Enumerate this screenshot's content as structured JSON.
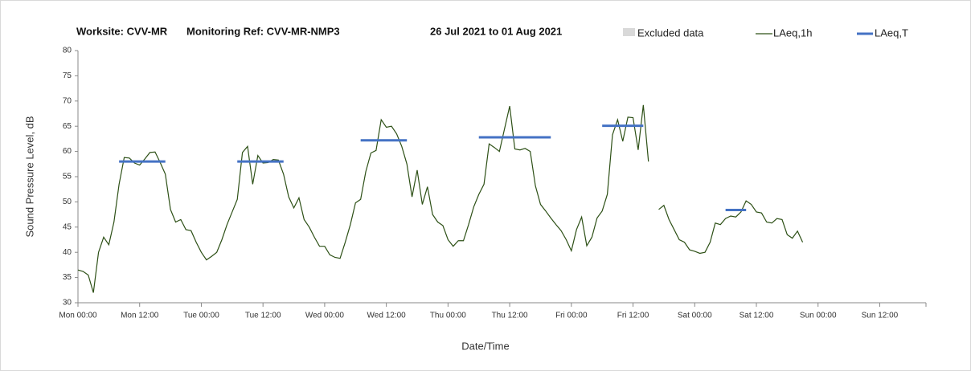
{
  "chart_data": {
    "type": "line",
    "title": [
      "Worksite: CVV-MR",
      "Monitoring Ref: CVV-MR-NMP3",
      "26 Jul 2021 to 01 Aug 2021"
    ],
    "x_label": "Date/Time",
    "y_label": "Sound Pressure Level, dB",
    "xlim": [
      0,
      165
    ],
    "xticks": [
      {
        "value": 0,
        "label": "Mon 00:00"
      },
      {
        "value": 12,
        "label": "Mon 12:00"
      },
      {
        "value": 24,
        "label": "Tue 00:00"
      },
      {
        "value": 36,
        "label": "Tue 12:00"
      },
      {
        "value": 48,
        "label": "Wed 00:00"
      },
      {
        "value": 60,
        "label": "Wed 12:00"
      },
      {
        "value": 72,
        "label": "Thu 00:00"
      },
      {
        "value": 84,
        "label": "Thu 12:00"
      },
      {
        "value": 96,
        "label": "Fri 00:00"
      },
      {
        "value": 108,
        "label": "Fri 12:00"
      },
      {
        "value": 120,
        "label": "Sat 00:00"
      },
      {
        "value": 132,
        "label": "Sat 12:00"
      },
      {
        "value": 144,
        "label": "Sun 00:00"
      },
      {
        "value": 156,
        "label": "Sun 12:00"
      }
    ],
    "ylim": [
      30,
      80
    ],
    "yticks": [
      30,
      35,
      40,
      45,
      50,
      55,
      60,
      65,
      70,
      75,
      80
    ],
    "x": [
      0,
      1,
      2,
      3,
      4,
      5,
      6,
      7,
      8,
      9,
      10,
      11,
      12,
      13,
      14,
      15,
      16,
      17,
      18,
      19,
      20,
      21,
      22,
      23,
      24,
      25,
      26,
      27,
      28,
      29,
      30,
      31,
      32,
      33,
      34,
      35,
      36,
      37,
      38,
      39,
      40,
      41,
      42,
      43,
      44,
      45,
      46,
      47,
      48,
      49,
      50,
      51,
      52,
      53,
      54,
      55,
      56,
      57,
      58,
      59,
      60,
      61,
      62,
      63,
      64,
      65,
      66,
      67,
      68,
      69,
      70,
      71,
      72,
      73,
      74,
      75,
      76,
      77,
      78,
      79,
      80,
      81,
      82,
      83,
      84,
      85,
      86,
      87,
      88,
      89,
      90,
      91,
      92,
      93,
      94,
      95,
      96,
      97,
      98,
      99,
      100,
      101,
      102,
      103,
      104,
      105,
      106,
      107,
      108,
      109,
      110,
      111,
      112,
      113,
      114,
      115,
      116,
      117,
      118,
      119,
      120,
      121,
      122,
      123,
      124,
      125,
      126,
      127,
      128,
      129,
      130,
      131,
      132,
      133,
      134,
      135,
      136,
      137,
      138,
      139,
      140,
      141
    ],
    "series": [
      {
        "name": "Excluded data",
        "color": "#d9d9d9",
        "kind": "band",
        "ranges": []
      },
      {
        "name": "LAeq,1h",
        "color": "#2d5016",
        "kind": "line",
        "values": [
          36.5,
          36.2,
          35.5,
          32,
          40,
          43,
          41.5,
          46,
          53.5,
          58.8,
          58.7,
          57.7,
          57.3,
          58.5,
          59.8,
          59.9,
          57.8,
          55.5,
          48.5,
          46,
          46.5,
          44.5,
          44.3,
          42,
          40,
          38.5,
          39.2,
          40,
          42.5,
          45.5,
          48,
          50.5,
          59.8,
          61,
          53.5,
          59.2,
          57.7,
          57.8,
          58.4,
          58.3,
          55.5,
          51,
          48.8,
          50.8,
          46.5,
          45,
          43,
          41.2,
          41.2,
          39.5,
          39,
          38.8,
          42,
          45.5,
          49.8,
          50.5,
          56,
          59.7,
          60.2,
          66.3,
          64.8,
          65,
          63.5,
          61,
          57.5,
          51,
          56.3,
          49.5,
          53,
          47.5,
          46,
          45.3,
          42.5,
          41.2,
          42.3,
          42.3,
          45.5,
          49,
          51.5,
          53.5,
          61.5,
          60.8,
          60,
          64.5,
          69,
          60.5,
          60.3,
          60.6,
          60,
          53.2,
          49.5,
          48.2,
          46.8,
          45.5,
          44.3,
          42.5,
          40.3,
          44.5,
          47,
          41.3,
          43,
          46.8,
          48.2,
          51.5,
          63.3,
          66.3,
          62,
          66.8,
          66.7,
          60.3,
          69.2,
          58,
          null,
          48.5,
          49.3,
          46.5,
          44.5,
          42.5,
          42,
          40.5,
          40.2,
          39.8,
          40,
          42,
          45.8,
          45.5,
          46.7,
          47.2,
          47,
          48,
          50.2,
          49.5,
          48,
          47.8,
          46,
          45.8,
          46.7,
          46.5,
          43.5,
          42.8,
          44.2,
          42
        ]
      },
      {
        "name": "LAeq,T",
        "color": "#4472c4",
        "kind": "segments",
        "segments": [
          {
            "x": [
              8,
              17
            ],
            "value": 58
          },
          {
            "x": [
              31,
              40
            ],
            "value": 58
          },
          {
            "x": [
              55,
              64
            ],
            "value": 62.2
          },
          {
            "x": [
              78,
              92
            ],
            "value": 62.8
          },
          {
            "x": [
              102,
              110
            ],
            "value": 65.1
          },
          {
            "x": [
              126,
              130
            ],
            "value": 48.4
          }
        ]
      }
    ]
  }
}
